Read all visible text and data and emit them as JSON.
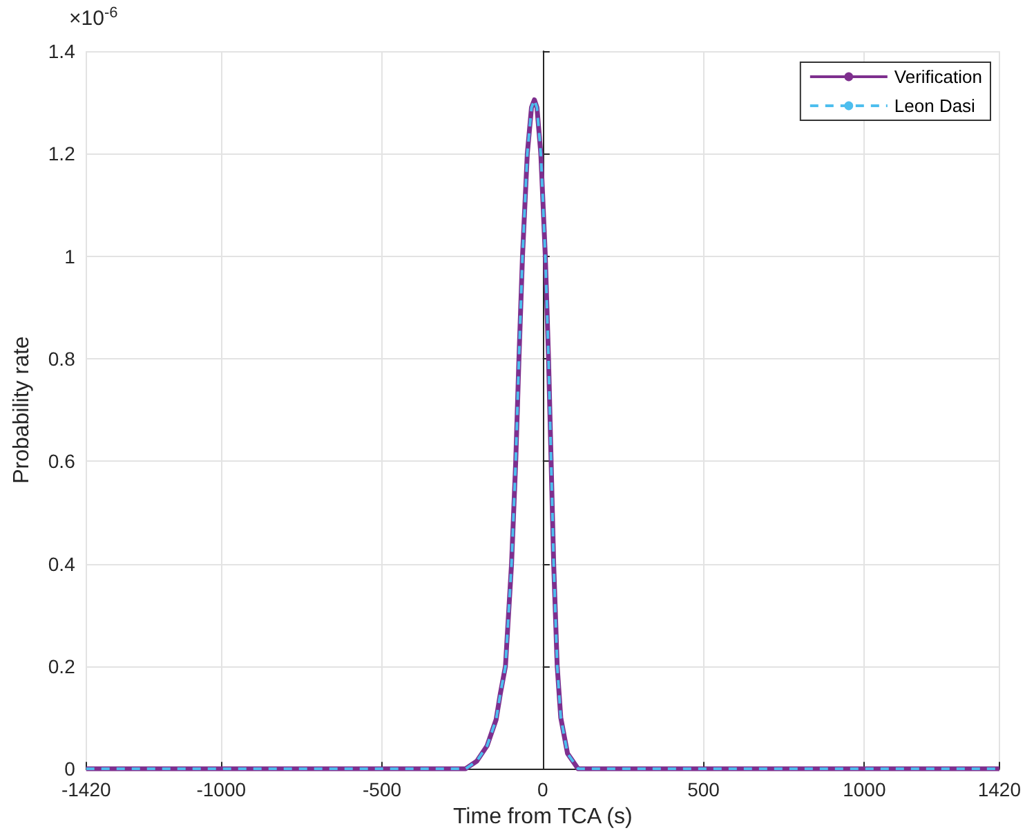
{
  "chart_data": {
    "type": "line",
    "xlabel": "Time from TCA (s)",
    "ylabel": "Probability rate",
    "annotations": [
      "×10$^{-6}$"
    ],
    "xlim": [
      -1420,
      1420
    ],
    "xticks": [
      -1420,
      -1000,
      -500,
      0,
      500,
      1000,
      1420
    ],
    "ylim": [
      0,
      1.4
    ],
    "yticks": [
      0,
      0.2,
      0.4,
      0.6,
      0.8,
      1,
      1.2,
      1.4
    ],
    "grid": true,
    "legend": "top right",
    "series": [
      {
        "name": "Verification",
        "color": "#7e2f8e",
        "line_style": "solid",
        "x": [
          -1420,
          -240,
          -205,
          -173,
          -145,
          -132,
          -116,
          -97,
          -84,
          -74,
          -63,
          -48,
          -35,
          -26,
          -18,
          -6,
          8,
          18,
          26,
          34,
          45,
          56,
          77,
          110,
          1420
        ],
        "values": [
          0,
          0,
          0.015,
          0.045,
          0.096,
          0.146,
          0.2,
          0.4,
          0.6,
          0.8,
          1,
          1.2,
          1.29,
          1.305,
          1.29,
          1.2,
          1,
          0.8,
          0.6,
          0.4,
          0.2,
          0.1,
          0.03,
          0,
          0
        ]
      },
      {
        "name": "Leon Dasi",
        "color": "#4dbeee",
        "line_style": "dashed",
        "x": [
          -1420,
          -240,
          -205,
          -173,
          -145,
          -132,
          -116,
          -97,
          -84,
          -74,
          -63,
          -48,
          -35,
          -26,
          -18,
          -6,
          8,
          18,
          26,
          34,
          45,
          56,
          77,
          110,
          1420
        ],
        "values": [
          0,
          0,
          0.015,
          0.045,
          0.096,
          0.146,
          0.2,
          0.4,
          0.6,
          0.8,
          1,
          1.2,
          1.29,
          1.305,
          1.29,
          1.2,
          1,
          0.8,
          0.6,
          0.4,
          0.2,
          0.1,
          0.03,
          0,
          0
        ]
      }
    ]
  }
}
